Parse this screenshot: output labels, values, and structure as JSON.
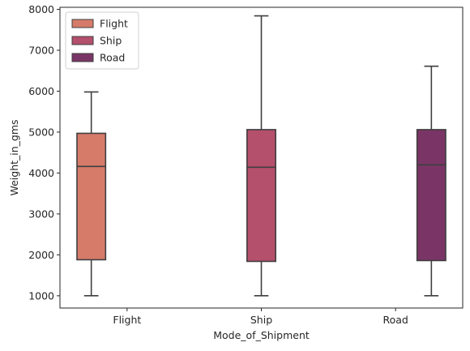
{
  "chart_data": {
    "type": "box",
    "xlabel": "Mode_of_Shipment",
    "ylabel": "Weight_in_gms",
    "categories": [
      "Flight",
      "Ship",
      "Road"
    ],
    "ylim": [
      700,
      8050
    ],
    "yticks": [
      1000,
      2000,
      3000,
      4000,
      5000,
      6000,
      7000,
      8000
    ],
    "grid": false,
    "legend_position": "top-left",
    "series": [
      {
        "name": "Flight",
        "color": "#d67b69",
        "category": "Flight",
        "min": 1000,
        "q1": 1880,
        "median": 4160,
        "q3": 4970,
        "max": 5980
      },
      {
        "name": "Ship",
        "color": "#b44f6c",
        "category": "Ship",
        "min": 1000,
        "q1": 1840,
        "median": 4140,
        "q3": 5060,
        "max": 7840
      },
      {
        "name": "Road",
        "color": "#7a3566",
        "category": "Road",
        "min": 1000,
        "q1": 1860,
        "median": 4200,
        "q3": 5060,
        "max": 6610
      }
    ]
  }
}
